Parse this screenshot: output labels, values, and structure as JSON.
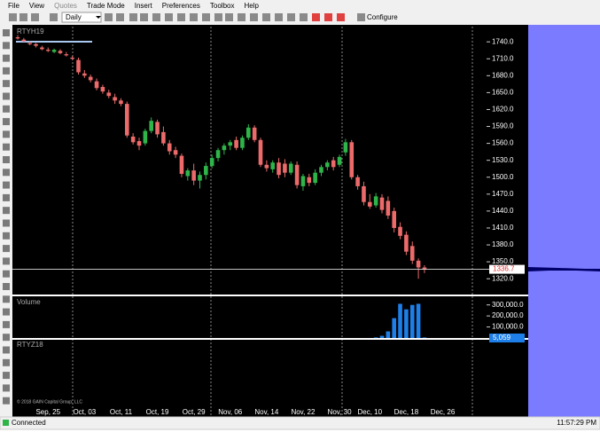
{
  "menu": [
    "File",
    "View",
    "Quotes",
    "Trade Mode",
    "Insert",
    "Preferences",
    "Toolbox",
    "Help"
  ],
  "toolbar": {
    "interval": "Daily",
    "configure": "Configure"
  },
  "status": {
    "connection": "Connected",
    "time": "11:57:29 PM"
  },
  "chart_data": {
    "type": "candlestick",
    "title": "RTYH19",
    "categories": [
      null,
      null,
      null,
      null,
      null,
      "Sep, 25",
      null,
      null,
      null,
      null,
      null,
      "Oct, 03",
      null,
      null,
      null,
      null,
      null,
      "Oct, 11",
      null,
      null,
      null,
      null,
      null,
      "Oct, 19",
      null,
      null,
      null,
      null,
      null,
      "Oct, 29",
      null,
      null,
      null,
      null,
      null,
      "Nov, 06",
      null,
      null,
      null,
      null,
      null,
      "Nov, 14",
      null,
      null,
      null,
      null,
      null,
      "Nov, 22",
      null,
      null,
      null,
      null,
      null,
      "Nov, 30",
      null,
      null,
      null,
      null,
      "Dec, 10",
      null,
      null,
      null,
      null,
      null,
      "Dec, 18",
      null,
      null,
      null,
      null,
      null,
      "Dec, 26",
      null
    ],
    "ohlc": [
      [
        1748,
        1752,
        1744,
        1746
      ],
      [
        1744,
        1747,
        1740,
        1741
      ],
      [
        1738,
        1741,
        1734,
        1736
      ],
      [
        1736,
        1738,
        1730,
        1733
      ],
      [
        1730,
        1733,
        1725,
        1727
      ],
      [
        1726,
        1730,
        1722,
        1724
      ],
      [
        1722,
        1728,
        1720,
        1726
      ],
      [
        1724,
        1727,
        1718,
        1720
      ],
      [
        1718,
        1722,
        1714,
        1716
      ],
      [
        1712,
        1715,
        1708,
        1710
      ],
      [
        1708,
        1712,
        1682,
        1686
      ],
      [
        1684,
        1690,
        1676,
        1680
      ],
      [
        1678,
        1682,
        1668,
        1672
      ],
      [
        1670,
        1675,
        1654,
        1658
      ],
      [
        1660,
        1664,
        1648,
        1652
      ],
      [
        1650,
        1655,
        1640,
        1644
      ],
      [
        1642,
        1648,
        1630,
        1636
      ],
      [
        1636,
        1640,
        1626,
        1630
      ],
      [
        1630,
        1634,
        1570,
        1574
      ],
      [
        1572,
        1578,
        1558,
        1562
      ],
      [
        1564,
        1570,
        1548,
        1556
      ],
      [
        1560,
        1586,
        1556,
        1582
      ],
      [
        1582,
        1606,
        1578,
        1600
      ],
      [
        1598,
        1602,
        1570,
        1576
      ],
      [
        1580,
        1590,
        1556,
        1560
      ],
      [
        1560,
        1566,
        1540,
        1546
      ],
      [
        1548,
        1554,
        1534,
        1540
      ],
      [
        1538,
        1542,
        1500,
        1506
      ],
      [
        1502,
        1516,
        1494,
        1512
      ],
      [
        1512,
        1524,
        1486,
        1494
      ],
      [
        1494,
        1510,
        1480,
        1504
      ],
      [
        1504,
        1526,
        1496,
        1520
      ],
      [
        1520,
        1540,
        1516,
        1534
      ],
      [
        1534,
        1552,
        1528,
        1548
      ],
      [
        1548,
        1560,
        1540,
        1556
      ],
      [
        1556,
        1566,
        1548,
        1562
      ],
      [
        1566,
        1572,
        1548,
        1552
      ],
      [
        1552,
        1574,
        1548,
        1570
      ],
      [
        1570,
        1594,
        1566,
        1588
      ],
      [
        1588,
        1592,
        1562,
        1566
      ],
      [
        1566,
        1570,
        1518,
        1522
      ],
      [
        1522,
        1530,
        1510,
        1516
      ],
      [
        1514,
        1530,
        1508,
        1526
      ],
      [
        1526,
        1534,
        1498,
        1504
      ],
      [
        1524,
        1532,
        1500,
        1508
      ],
      [
        1508,
        1528,
        1504,
        1524
      ],
      [
        1522,
        1528,
        1480,
        1486
      ],
      [
        1484,
        1506,
        1476,
        1502
      ],
      [
        1500,
        1506,
        1484,
        1490
      ],
      [
        1490,
        1514,
        1486,
        1508
      ],
      [
        1508,
        1522,
        1502,
        1518
      ],
      [
        1518,
        1530,
        1512,
        1526
      ],
      [
        1530,
        1536,
        1512,
        1518
      ],
      [
        1522,
        1540,
        1518,
        1536
      ],
      [
        1544,
        1568,
        1538,
        1562
      ],
      [
        1562,
        1566,
        1496,
        1500
      ],
      [
        1500,
        1504,
        1478,
        1484
      ],
      [
        1484,
        1492,
        1450,
        1456
      ],
      [
        1456,
        1470,
        1444,
        1448
      ],
      [
        1450,
        1472,
        1446,
        1466
      ],
      [
        1464,
        1470,
        1436,
        1442
      ],
      [
        1458,
        1466,
        1426,
        1432
      ],
      [
        1440,
        1446,
        1402,
        1410
      ],
      [
        1412,
        1420,
        1390,
        1396
      ],
      [
        1398,
        1404,
        1362,
        1368
      ],
      [
        1378,
        1386,
        1346,
        1352
      ],
      [
        1352,
        1356,
        1320,
        1340
      ],
      [
        1340,
        1344,
        1330,
        1336.7
      ],
      null,
      null,
      null,
      null
    ],
    "up_color": "#2fb44a",
    "down_color": "#ec6a6a",
    "ylim": [
      1292,
      1767
    ],
    "yticks": [
      {
        "value": 1320,
        "label": "1320.0"
      },
      {
        "value": 1350,
        "label": "1350.0"
      },
      {
        "value": 1380,
        "label": "1380.0"
      },
      {
        "value": 1410,
        "label": "1410.0"
      },
      {
        "value": 1440,
        "label": "1440.0"
      },
      {
        "value": 1470,
        "label": "1470.0"
      },
      {
        "value": 1500,
        "label": "1500.0"
      },
      {
        "value": 1530,
        "label": "1530.0"
      },
      {
        "value": 1560,
        "label": "1560.0"
      },
      {
        "value": 1590,
        "label": "1590.0"
      },
      {
        "value": 1620,
        "label": "1620.0"
      },
      {
        "value": 1650,
        "label": "1650.0"
      },
      {
        "value": 1680,
        "label": "1680.0"
      },
      {
        "value": 1710,
        "label": "1710.0"
      },
      {
        "value": 1740,
        "label": "1740.0"
      }
    ],
    "volume": {
      "title": "Volume",
      "color": "#1e7fe8",
      "values": [
        null,
        null,
        null,
        null,
        null,
        null,
        null,
        null,
        null,
        null,
        null,
        null,
        null,
        null,
        null,
        null,
        null,
        null,
        null,
        null,
        null,
        null,
        null,
        null,
        null,
        null,
        null,
        null,
        null,
        null,
        null,
        null,
        null,
        null,
        null,
        null,
        null,
        null,
        null,
        null,
        null,
        null,
        null,
        null,
        null,
        null,
        null,
        null,
        null,
        null,
        null,
        null,
        null,
        null,
        null,
        null,
        null,
        null,
        null,
        5000,
        20000,
        60000,
        180000,
        310000,
        260000,
        300000,
        310000,
        5059,
        null,
        null,
        null,
        null
      ],
      "value_labels": [
        null,
        null,
        null,
        null,
        null,
        null,
        null,
        null,
        null,
        null,
        null,
        null,
        null,
        null,
        null,
        null,
        null,
        null,
        null,
        null,
        null,
        null,
        null,
        null,
        null,
        null,
        null,
        null,
        null,
        null,
        null,
        null,
        null,
        null,
        null,
        null,
        null,
        null,
        null,
        null,
        null,
        null,
        null,
        null,
        null,
        null,
        null,
        null,
        null,
        null,
        null,
        null,
        null,
        null,
        null,
        null,
        null,
        null,
        null,
        null,
        null,
        null,
        null,
        null,
        null,
        null,
        null,
        "5,059",
        null,
        null,
        null,
        null
      ],
      "ylim": [
        0,
        370000
      ],
      "yticks": [
        {
          "value": 100000,
          "label": "100,000.0"
        },
        {
          "value": 200000,
          "label": "200,000.0"
        },
        {
          "value": 300000,
          "label": "300,000.0"
        }
      ]
    },
    "lower_panel_title": "RTYZ18",
    "copyright": "© 2018 GAIN Capital Group, LLC"
  }
}
